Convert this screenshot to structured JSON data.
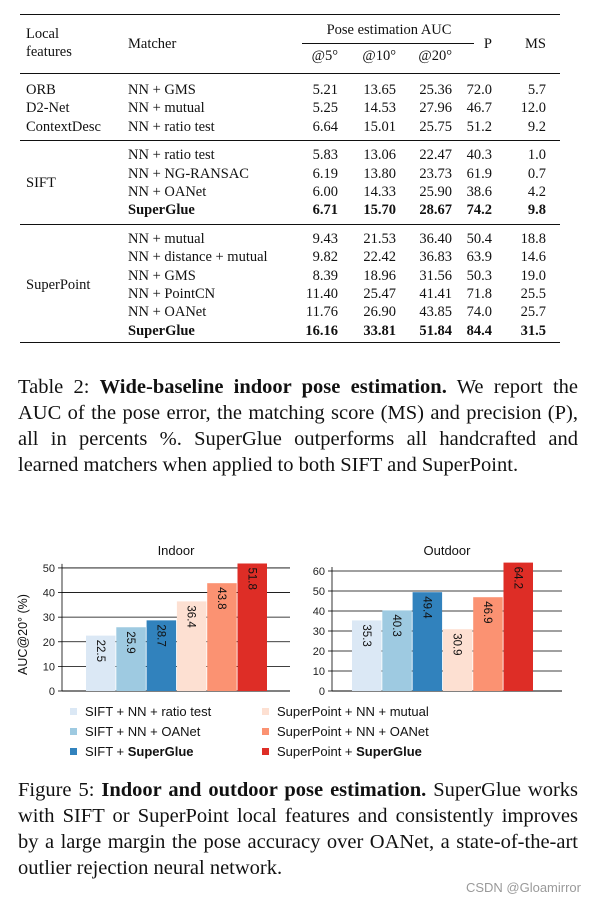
{
  "table": {
    "header": {
      "local_features": [
        "Local",
        "features"
      ],
      "matcher": "Matcher",
      "pose_group": "Pose estimation AUC",
      "auc5": "@5°",
      "auc10": "@10°",
      "auc20": "@20°",
      "p": "P",
      "ms": "MS"
    },
    "groups": [
      {
        "features": [
          {
            "label": "ORB"
          },
          {
            "label": "D2-Net"
          },
          {
            "label": "ContextDesc"
          }
        ],
        "rows": [
          {
            "matcher": "NN + GMS",
            "auc5": "5.21",
            "auc10": "13.65",
            "auc20": "25.36",
            "p": "72.0",
            "ms": "5.7",
            "bold": false
          },
          {
            "matcher": "NN + mutual",
            "auc5": "5.25",
            "auc10": "14.53",
            "auc20": "27.96",
            "p": "46.7",
            "ms": "12.0",
            "bold": false
          },
          {
            "matcher": "NN + ratio test",
            "auc5": "6.64",
            "auc10": "15.01",
            "auc20": "25.75",
            "p": "51.2",
            "ms": "9.2",
            "bold": false
          }
        ]
      },
      {
        "features": [
          {
            "label": "SIFT"
          }
        ],
        "rows": [
          {
            "matcher": "NN + ratio test",
            "auc5": "5.83",
            "auc10": "13.06",
            "auc20": "22.47",
            "p": "40.3",
            "ms": "1.0",
            "bold": false
          },
          {
            "matcher": "NN + NG-RANSAC",
            "auc5": "6.19",
            "auc10": "13.80",
            "auc20": "23.73",
            "p": "61.9",
            "ms": "0.7",
            "bold": false
          },
          {
            "matcher": "NN + OANet",
            "auc5": "6.00",
            "auc10": "14.33",
            "auc20": "25.90",
            "p": "38.6",
            "ms": "4.2",
            "bold": false
          },
          {
            "matcher": "SuperGlue",
            "auc5": "6.71",
            "auc10": "15.70",
            "auc20": "28.67",
            "p": "74.2",
            "ms": "9.8",
            "bold": true
          }
        ]
      },
      {
        "features": [
          {
            "label": "SuperPoint"
          }
        ],
        "rows": [
          {
            "matcher": "NN + mutual",
            "auc5": "9.43",
            "auc10": "21.53",
            "auc20": "36.40",
            "p": "50.4",
            "ms": "18.8",
            "bold": false
          },
          {
            "matcher": "NN + distance + mutual",
            "auc5": "9.82",
            "auc10": "22.42",
            "auc20": "36.83",
            "p": "63.9",
            "ms": "14.6",
            "bold": false
          },
          {
            "matcher": "NN + GMS",
            "auc5": "8.39",
            "auc10": "18.96",
            "auc20": "31.56",
            "p": "50.3",
            "ms": "19.0",
            "bold": false
          },
          {
            "matcher": "NN + PointCN",
            "auc5": "11.40",
            "auc10": "25.47",
            "auc20": "41.41",
            "p": "71.8",
            "ms": "25.5",
            "bold": false
          },
          {
            "matcher": "NN + OANet",
            "auc5": "11.76",
            "auc10": "26.90",
            "auc20": "43.85",
            "p": "74.0",
            "ms": "25.7",
            "bold": false
          },
          {
            "matcher": "SuperGlue",
            "auc5": "16.16",
            "auc10": "33.81",
            "auc20": "51.84",
            "p": "84.4",
            "ms": "31.5",
            "bold": true
          }
        ]
      }
    ]
  },
  "table_caption": {
    "label": "Table 2:",
    "title": "Wide-baseline indoor pose estimation.",
    "text": "We report the AUC of the pose error, the matching score (MS) and precision (P), all in percents %. SuperGlue outperforms all handcrafted and learned matchers when applied to both SIFT and SuperPoint."
  },
  "chart_data": [
    {
      "type": "bar",
      "title": "Indoor",
      "ylabel": "AUC@20° (%)",
      "ylim": [
        0,
        52
      ],
      "yticks": [
        0,
        10,
        20,
        30,
        40,
        50
      ],
      "grid": true,
      "categories": [
        "SIFT + NN + ratio test",
        "SIFT + NN + OANet",
        "SIFT + SuperGlue",
        "SuperPoint + NN + mutual",
        "SuperPoint + NN + OANet",
        "SuperPoint + SuperGlue"
      ],
      "values": [
        22.5,
        25.9,
        28.7,
        36.4,
        43.8,
        51.8
      ],
      "labels": [
        "22.5",
        "25.9",
        "28.7",
        "36.4",
        "43.8",
        "51.8"
      ]
    },
    {
      "type": "bar",
      "title": "Outdoor",
      "ylabel": "",
      "ylim": [
        0,
        64
      ],
      "yticks": [
        0,
        10,
        20,
        30,
        40,
        50,
        60
      ],
      "grid": true,
      "categories": [
        "SIFT + NN + ratio test",
        "SIFT + NN + OANet",
        "SIFT + SuperGlue",
        "SuperPoint + NN + mutual",
        "SuperPoint + NN + OANet",
        "SuperPoint + SuperGlue"
      ],
      "values": [
        35.3,
        40.3,
        49.4,
        30.9,
        46.9,
        64.2
      ],
      "labels": [
        "35.3",
        "40.3",
        "49.4",
        "30.9",
        "46.9",
        "64.2"
      ]
    }
  ],
  "legend": [
    {
      "prefix": "SIFT + NN + ratio test",
      "bold": "",
      "color": "#dbe8f5"
    },
    {
      "prefix": "SIFT + NN + OANet",
      "bold": "",
      "color": "#9ecae1"
    },
    {
      "prefix": "SIFT + ",
      "bold": "SuperGlue",
      "color": "#3182bd"
    },
    {
      "prefix": "SuperPoint + NN + mutual",
      "bold": "",
      "color": "#fde0d2"
    },
    {
      "prefix": "SuperPoint + NN + OANet",
      "bold": "",
      "color": "#fb9272"
    },
    {
      "prefix": "SuperPoint + ",
      "bold": "SuperGlue",
      "color": "#de2d26"
    }
  ],
  "figure_caption": {
    "label": "Figure 5:",
    "title": "Indoor and outdoor pose estimation.",
    "text": "SuperGlue works with SIFT or SuperPoint local features and consistently improves by a large margin the pose accuracy over OANet, a state-of-the-art outlier rejection neural network."
  },
  "watermark": "CSDN @Gloamirror"
}
